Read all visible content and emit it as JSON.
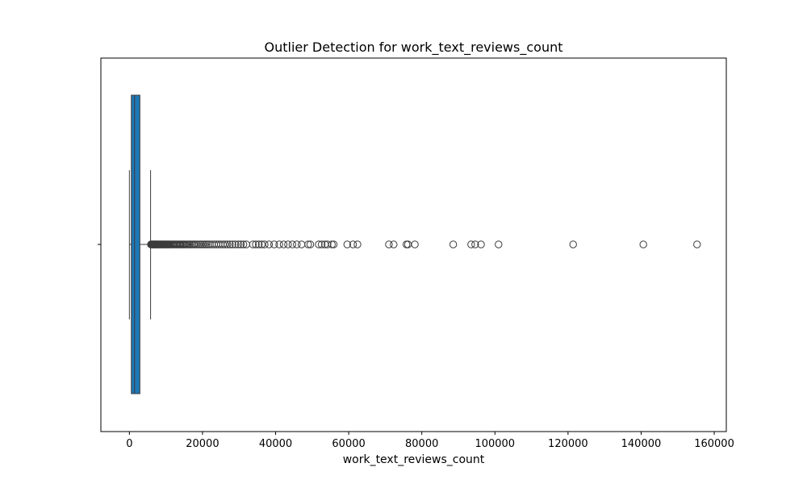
{
  "chart_data": {
    "type": "boxplot",
    "orientation": "horizontal",
    "title": "Outlier Detection for work_text_reviews_count",
    "xlabel": "work_text_reviews_count",
    "ylabel": "",
    "xlim": [
      -7800,
      163300
    ],
    "xticks": [
      0,
      20000,
      40000,
      60000,
      80000,
      100000,
      120000,
      140000,
      160000
    ],
    "xtick_labels": [
      "0",
      "20000",
      "40000",
      "60000",
      "80000",
      "100000",
      "120000",
      "140000",
      "160000"
    ],
    "grid": false,
    "legend": "none",
    "box": {
      "whisker_low": 0,
      "q1": 530,
      "median": 1420,
      "q3": 2870,
      "whisker_high": 5800,
      "fill_color": "#1f77b4",
      "line_color": "#3b3b3b"
    },
    "outliers": [
      5900,
      6050,
      6200,
      6350,
      6500,
      6650,
      6800,
      6950,
      7100,
      7250,
      7400,
      7550,
      7700,
      7850,
      8000,
      8200,
      8400,
      8600,
      8800,
      9000,
      9200,
      9400,
      9600,
      9800,
      10000,
      10200,
      10400,
      10600,
      10800,
      11000,
      11300,
      11600,
      11900,
      12200,
      12500,
      12800,
      13100,
      13400,
      13700,
      14000,
      14300,
      14600,
      14900,
      15200,
      15600,
      16000,
      16400,
      16800,
      17200,
      17600,
      18000,
      18500,
      19000,
      19500,
      20000,
      20500,
      21000,
      21500,
      22000,
      22600,
      23200,
      23800,
      24400,
      25000,
      25600,
      26200,
      26800,
      27500,
      28200,
      29000,
      29800,
      30500,
      31200,
      32000,
      33800,
      34600,
      35400,
      36200,
      37000,
      38200,
      39600,
      41000,
      42200,
      43400,
      44600,
      45800,
      47100,
      48900,
      49500,
      51800,
      52600,
      53500,
      54200,
      55400,
      55900,
      59600,
      61200,
      62400,
      71000,
      72300,
      75800,
      76200,
      78100,
      88600,
      93500,
      94600,
      96200,
      101000,
      121400,
      140600,
      155300
    ]
  }
}
